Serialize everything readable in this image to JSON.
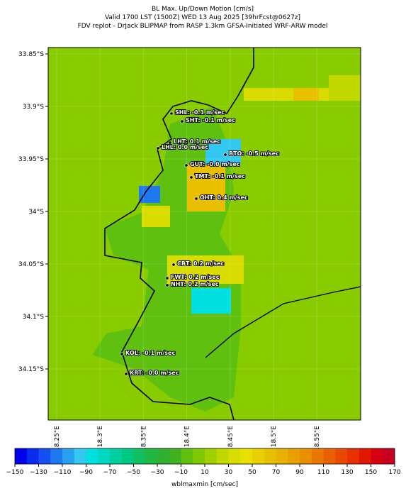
{
  "title": [
    "BL Max. Up/Down Motion [cm/s]",
    "Valid 1700 LST (1500Z) WED 13 Aug 2025 [39hrFcst@0627z]",
    "FDV replot - DrJack BLIPMAP from RASP 1.3km GFSA-Initiated WRF-ARW model"
  ],
  "map": {
    "lat_labels": [
      "33.85°S",
      "33.9°S",
      "33.95°S",
      "34°S",
      "34.05°S",
      "34.1°S",
      "34.15°S"
    ],
    "lon_labels": [
      "18.25°E",
      "18.3°E",
      "18.35°E",
      "18.4°E",
      "18.45°E",
      "18.5°E",
      "18.55°E"
    ],
    "stations": [
      "SHL: -0.1 m/sec",
      "SHT: -0.1 m/sec",
      "LHT: 0.1 m/sec",
      "LHL: 0.0 m/sec",
      "BTO: -0.5 m/sec",
      "GUT: -0.0 m/sec",
      "TMT: -0.1 m/sec",
      "OHT: 0.4 m/sec",
      "CBT: 0.2 m/sec",
      "FWT: 0.2 m/sec",
      "NHT: 0.2 m/sec",
      "KOL: -0.1 m/sec",
      "KRT: -0.0 m/sec"
    ]
  },
  "colorbar": {
    "label": "wblmaxmin [cm/sec]",
    "lim": [
      -150,
      170
    ],
    "colors": [
      "#0000ee",
      "#0a2af0",
      "#1450f0",
      "#1e78f0",
      "#28a0f0",
      "#32c8f0",
      "#00e0e0",
      "#00d8c0",
      "#00d0a0",
      "#00c880",
      "#10c060",
      "#20b840",
      "#30b030",
      "#40b020",
      "#60c010",
      "#80c800",
      "#a0d000",
      "#c0d800",
      "#d8dc00",
      "#e8e000",
      "#e8d000",
      "#e8c000",
      "#e8b000",
      "#e8a000",
      "#e89000",
      "#e87800",
      "#e86000",
      "#e84800",
      "#e83000",
      "#e01800",
      "#d80010",
      "#c80020"
    ],
    "ticks": [
      {
        "value": -150,
        "label": "−150"
      },
      {
        "value": -130,
        "label": "−130"
      },
      {
        "value": -110,
        "label": "−110"
      },
      {
        "value": -90,
        "label": "−90"
      },
      {
        "value": -70,
        "label": "−70"
      },
      {
        "value": -50,
        "label": "−50"
      },
      {
        "value": -30,
        "label": "−30"
      },
      {
        "value": -10,
        "label": "−10"
      },
      10,
      30,
      50,
      70,
      90,
      110,
      130,
      150,
      170
    ]
  }
}
